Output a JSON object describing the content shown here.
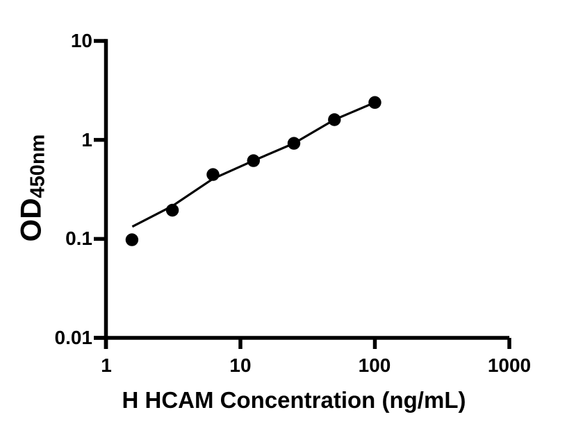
{
  "colors": {
    "background": "#ffffff",
    "ink": "#000000"
  },
  "chart_data": {
    "type": "scatter",
    "x_scale": "log",
    "y_scale": "log",
    "grid": false,
    "legend": null,
    "xlabel": "H HCAM Concentration (ng/mL)",
    "ylabel_main": "OD",
    "ylabel_sub": "450nm",
    "xlim": [
      1,
      1000
    ],
    "ylim": [
      0.01,
      10
    ],
    "x_tick_values": [
      1,
      10,
      100,
      1000
    ],
    "x_tick_labels": [
      "1",
      "10",
      "100",
      "1000"
    ],
    "y_tick_values": [
      10,
      1,
      0.1,
      0.01
    ],
    "y_tick_labels": [
      "10",
      "1",
      "0.1",
      "0.01"
    ],
    "points": [
      {
        "x": 1.56,
        "y": 0.098
      },
      {
        "x": 3.12,
        "y": 0.195
      },
      {
        "x": 6.25,
        "y": 0.447
      },
      {
        "x": 12.5,
        "y": 0.617
      },
      {
        "x": 25,
        "y": 0.923
      },
      {
        "x": 50,
        "y": 1.6
      },
      {
        "x": 100,
        "y": 2.39
      }
    ],
    "fit_line": [
      {
        "x": 1.57,
        "y": 0.133
      },
      {
        "x": 3.12,
        "y": 0.215
      },
      {
        "x": 6.25,
        "y": 0.405
      },
      {
        "x": 12.5,
        "y": 0.617
      },
      {
        "x": 25,
        "y": 0.923
      },
      {
        "x": 50,
        "y": 1.6
      },
      {
        "x": 100,
        "y": 2.39
      }
    ]
  }
}
